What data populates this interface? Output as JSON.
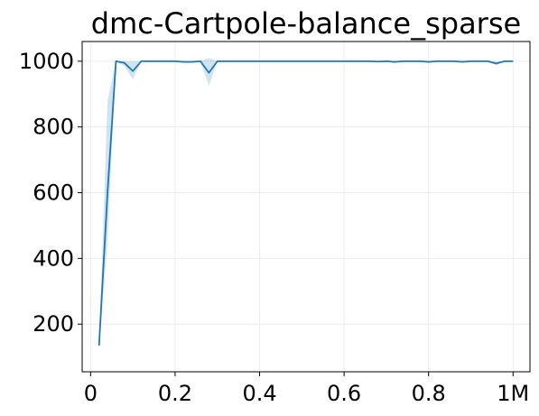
{
  "chart_data": {
    "type": "line",
    "title": "dmc-Cartpole-balance_sparse",
    "xlabel": "",
    "ylabel": "",
    "xlim": [
      -0.02,
      1.04
    ],
    "ylim": [
      55,
      1060
    ],
    "x_ticks": [
      {
        "value": 0,
        "label": "0"
      },
      {
        "value": 0.2,
        "label": "0.2"
      },
      {
        "value": 0.4,
        "label": "0.4"
      },
      {
        "value": 0.6,
        "label": "0.6"
      },
      {
        "value": 0.8,
        "label": "0.8"
      },
      {
        "value": 1.0,
        "label": "1M"
      }
    ],
    "y_ticks": [
      {
        "value": 200,
        "label": "200"
      },
      {
        "value": 400,
        "label": "400"
      },
      {
        "value": 600,
        "label": "600"
      },
      {
        "value": 800,
        "label": "800"
      },
      {
        "value": 1000,
        "label": "1000"
      }
    ],
    "grid": true,
    "line_color": "#1f77b4",
    "band_color": "#1f77b4",
    "series": [
      {
        "x": [
          0.02,
          0.04,
          0.06,
          0.08,
          0.1,
          0.12,
          0.14,
          0.16,
          0.18,
          0.2,
          0.22,
          0.24,
          0.26,
          0.28,
          0.3,
          0.32,
          0.34,
          0.36,
          0.38,
          0.4,
          0.42,
          0.44,
          0.46,
          0.48,
          0.5,
          0.52,
          0.54,
          0.56,
          0.58,
          0.6,
          0.62,
          0.64,
          0.66,
          0.68,
          0.7,
          0.72,
          0.74,
          0.76,
          0.78,
          0.8,
          0.82,
          0.84,
          0.86,
          0.88,
          0.9,
          0.92,
          0.94,
          0.96,
          0.98,
          1.0
        ],
        "y": [
          135,
          600,
          1000,
          995,
          970,
          1000,
          1000,
          1000,
          1000,
          1000,
          998,
          998,
          1000,
          965,
          1000,
          1000,
          1000,
          1000,
          1000,
          1000,
          1000,
          1000,
          1000,
          1000,
          1000,
          1000,
          1000,
          1000,
          1000,
          1000,
          1000,
          1000,
          1000,
          999,
          1000,
          998,
          1000,
          1000,
          1000,
          998,
          1000,
          1000,
          1000,
          998,
          1000,
          1000,
          1000,
          993,
          1000,
          1000
        ],
        "low": [
          135,
          450,
          1000,
          985,
          945,
          1000,
          1000,
          1000,
          1000,
          1000,
          998,
          998,
          998,
          925,
          1000,
          1000,
          1000,
          1000,
          1000,
          1000,
          1000,
          1000,
          1000,
          1000,
          1000,
          1000,
          1000,
          1000,
          1000,
          1000,
          1000,
          1000,
          1000,
          997,
          1000,
          997,
          1000,
          1000,
          1000,
          997,
          1000,
          1000,
          1000,
          997,
          1000,
          1000,
          1000,
          988,
          1000,
          1000
        ],
        "high": [
          135,
          880,
          1000,
          1000,
          1000,
          1000,
          1000,
          1000,
          1000,
          1000,
          1000,
          1000,
          1000,
          1010,
          1000,
          1000,
          1000,
          1000,
          1000,
          1000,
          1000,
          1000,
          1000,
          1000,
          1000,
          1000,
          1000,
          1000,
          1000,
          1000,
          1000,
          1000,
          1000,
          1000,
          1000,
          1000,
          1000,
          1000,
          1000,
          1000,
          1000,
          1000,
          1000,
          1000,
          1000,
          1000,
          1000,
          1000,
          1000,
          1000
        ]
      }
    ]
  }
}
